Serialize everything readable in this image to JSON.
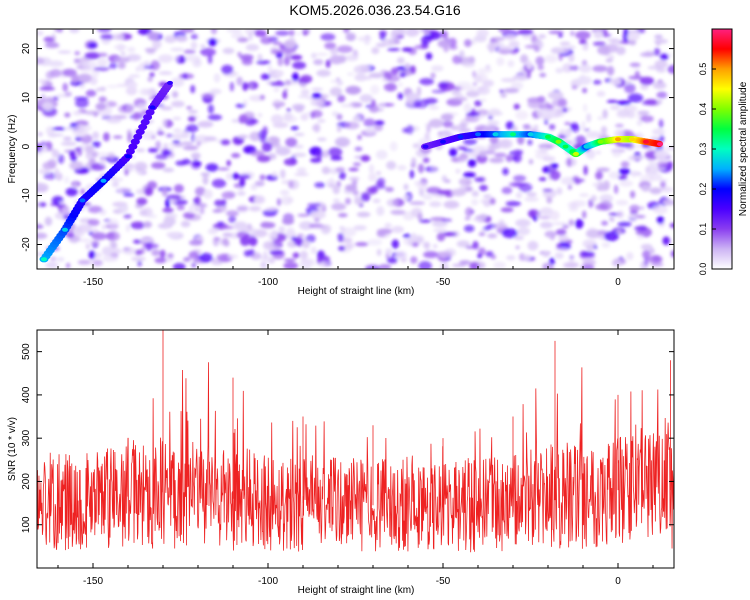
{
  "title": "KOM5.2026.036.23.54.G16",
  "chart_data": [
    {
      "type": "heatmap",
      "xlabel": "Height of straight line (km)",
      "ylabel": "Frequency (Hz)",
      "xlim": [
        -166,
        16
      ],
      "ylim": [
        -25,
        24
      ],
      "xticks": [
        -150,
        -100,
        -50,
        0
      ],
      "yticks": [
        -20,
        -10,
        0,
        10,
        20
      ],
      "colorbar": {
        "label": "Normalized spectral amplitude",
        "range": [
          0,
          0.6
        ],
        "ticks": [
          0.0,
          0.1,
          0.2,
          0.3,
          0.4,
          0.5
        ],
        "ticklabels": [
          "0.0",
          "0.1",
          "0.2",
          "0.3",
          "0.4",
          "0.5"
        ],
        "colors": [
          "#ffffff",
          "#cdb4f4",
          "#8a3ef0",
          "#4a00ff",
          "#0000ff",
          "#00b0ff",
          "#00ffc0",
          "#00ff40",
          "#80ff00",
          "#ffff00",
          "#ffa000",
          "#ff0000",
          "#ff2080"
        ]
      },
      "ridge": [
        {
          "x": -164,
          "y": -23,
          "a": 0.25
        },
        {
          "x": -158,
          "y": -17,
          "a": 0.22
        },
        {
          "x": -153,
          "y": -11,
          "a": 0.18
        },
        {
          "x": -147,
          "y": -7,
          "a": 0.2
        },
        {
          "x": -140,
          "y": -2,
          "a": 0.15
        },
        {
          "x": -133,
          "y": 8,
          "a": 0.14
        },
        {
          "x": -128,
          "y": 13,
          "a": 0.12
        },
        {
          "x": -55,
          "y": 0,
          "a": 0.12
        },
        {
          "x": -50,
          "y": 1,
          "a": 0.14
        },
        {
          "x": -45,
          "y": 2,
          "a": 0.16
        },
        {
          "x": -40,
          "y": 2.5,
          "a": 0.18
        },
        {
          "x": -35,
          "y": 2.5,
          "a": 0.22
        },
        {
          "x": -30,
          "y": 2.5,
          "a": 0.28
        },
        {
          "x": -25,
          "y": 2.5,
          "a": 0.22
        },
        {
          "x": -20,
          "y": 2,
          "a": 0.3
        },
        {
          "x": -17,
          "y": 1,
          "a": 0.35
        },
        {
          "x": -15,
          "y": 0,
          "a": 0.3
        },
        {
          "x": -13,
          "y": -1,
          "a": 0.3
        },
        {
          "x": -12,
          "y": -1.5,
          "a": 0.38
        },
        {
          "x": -9,
          "y": 0,
          "a": 0.22
        },
        {
          "x": -5,
          "y": 1,
          "a": 0.35
        },
        {
          "x": 0,
          "y": 1.5,
          "a": 0.45
        },
        {
          "x": 4,
          "y": 1.5,
          "a": 0.42
        },
        {
          "x": 8,
          "y": 1,
          "a": 0.52
        },
        {
          "x": 12,
          "y": 0.5,
          "a": 0.55
        }
      ]
    },
    {
      "type": "line",
      "xlabel": "Height of straight line (km)",
      "ylabel": "SNR (10 * v/v)",
      "xlim": [
        -166,
        16
      ],
      "ylim": [
        0,
        550
      ],
      "xticks": [
        -150,
        -100,
        -50,
        0
      ],
      "yticks": [
        100,
        200,
        300,
        400,
        500
      ],
      "series": [
        {
          "color": "#ee2222",
          "mean_profile": [
            {
              "x": -166,
              "mean": 150,
              "peak": 230
            },
            {
              "x": -140,
              "mean": 165,
              "peak": 300
            },
            {
              "x": -130,
              "mean": 175,
              "peak": 550
            },
            {
              "x": -110,
              "mean": 160,
              "peak": 440
            },
            {
              "x": -90,
              "mean": 150,
              "peak": 350
            },
            {
              "x": -70,
              "mean": 145,
              "peak": 330
            },
            {
              "x": -50,
              "mean": 140,
              "peak": 300
            },
            {
              "x": -30,
              "mean": 150,
              "peak": 350
            },
            {
              "x": -18,
              "mean": 165,
              "peak": 525
            },
            {
              "x": 0,
              "mean": 180,
              "peak": 400
            },
            {
              "x": 15,
              "mean": 180,
              "peak": 480
            }
          ]
        }
      ]
    }
  ]
}
